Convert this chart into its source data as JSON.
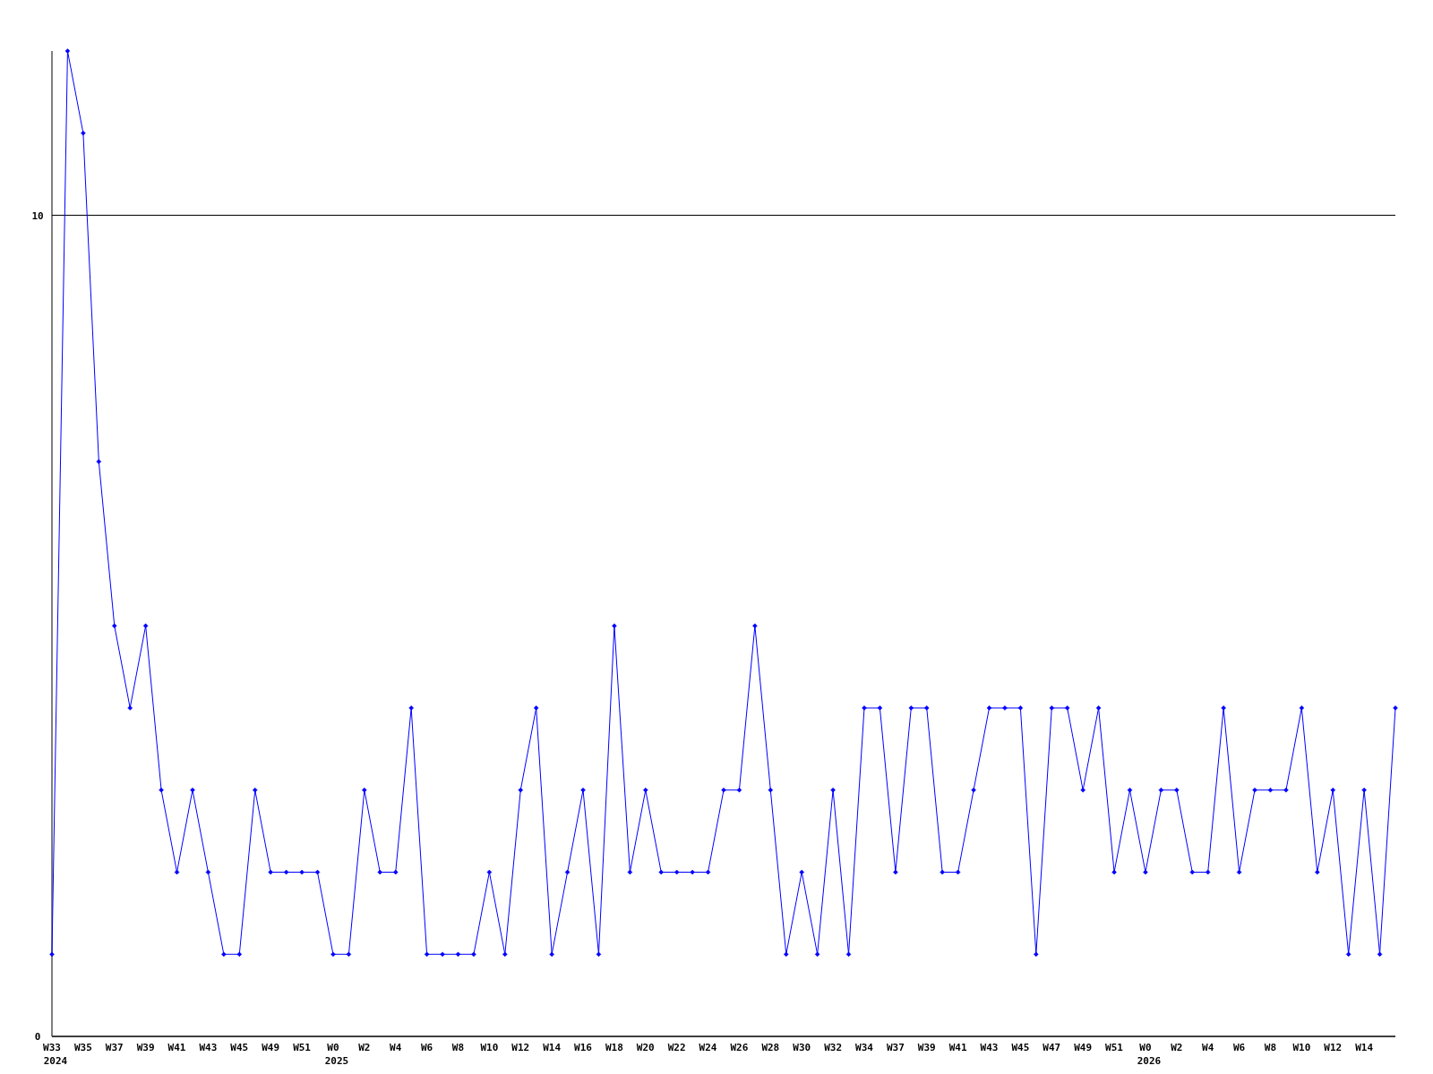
{
  "chart_data": {
    "type": "line",
    "categories": [
      "W33\n2024",
      null,
      "W35",
      null,
      "W37",
      null,
      "W39",
      null,
      "W41",
      null,
      "W43",
      null,
      "W45",
      null,
      "W49",
      null,
      "W51",
      null,
      "W0\n2025",
      null,
      "W2",
      null,
      "W4",
      null,
      "W6",
      null,
      "W8",
      null,
      "W10",
      null,
      "W12",
      null,
      "W14",
      null,
      "W16",
      null,
      "W18",
      null,
      "W20",
      null,
      "W22",
      null,
      "W24",
      null,
      "W26",
      null,
      "W28",
      null,
      "W30",
      null,
      "W32",
      null,
      "W34",
      null,
      "W37",
      null,
      "W39",
      null,
      "W41",
      null,
      "W43",
      null,
      "W45",
      null,
      "W47",
      null,
      "W49",
      null,
      "W51",
      null,
      "W0\n2026",
      null,
      "W2",
      null,
      "W4",
      null,
      "W6",
      null,
      "W8",
      null,
      "W10",
      null,
      "W12",
      null,
      "W14",
      null,
      null
    ],
    "series": [
      {
        "color": "#0000ff",
        "values": [
          1,
          12,
          11,
          7,
          5,
          4,
          5,
          3,
          2,
          3,
          2,
          1,
          1,
          3,
          2,
          2,
          2,
          2,
          1,
          1,
          3,
          2,
          2,
          4,
          1,
          1,
          1,
          1,
          2,
          1,
          3,
          4,
          1,
          2,
          3,
          1,
          5,
          2,
          3,
          2,
          2,
          2,
          2,
          3,
          3,
          5,
          3,
          1,
          2,
          1,
          3,
          1,
          4,
          4,
          2,
          4,
          4,
          2,
          2,
          3,
          4,
          4,
          4,
          1,
          4,
          4,
          3,
          4,
          2,
          3,
          2,
          3,
          3,
          2,
          2,
          4,
          2,
          3,
          3,
          3,
          4,
          2,
          3,
          1,
          3,
          1,
          4
        ]
      }
    ],
    "ylim": [
      0,
      12
    ],
    "yticks": [
      0,
      10
    ],
    "grid": "y",
    "marker": "diamond",
    "line_style": "solid"
  }
}
